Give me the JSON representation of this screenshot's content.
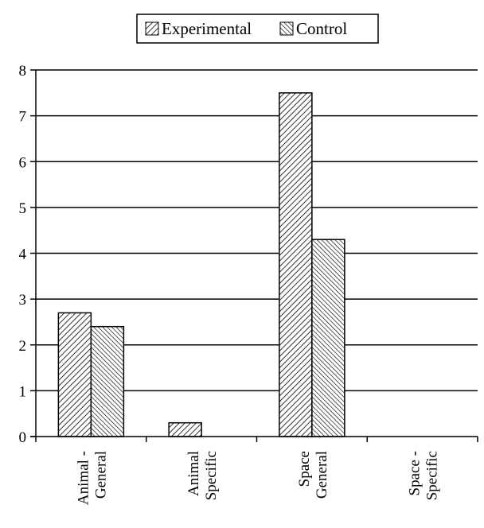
{
  "chart_data": {
    "type": "bar",
    "categories": [
      "Animal - General",
      "Animal Specific",
      "Space General",
      "Space - Specific"
    ],
    "category_lines": [
      [
        "Animal -",
        "General"
      ],
      [
        "Animal",
        "Specific"
      ],
      [
        "Space",
        "General"
      ],
      [
        "Space -",
        "Specific"
      ]
    ],
    "series": [
      {
        "name": "Experimental",
        "values": [
          2.7,
          0.3,
          7.5,
          0
        ]
      },
      {
        "name": "Control",
        "values": [
          2.4,
          0,
          4.3,
          0
        ]
      }
    ],
    "ylim": [
      0,
      8
    ],
    "yticks": [
      0,
      1,
      2,
      3,
      4,
      5,
      6,
      7,
      8
    ],
    "grid": true,
    "legend_position": "top-center",
    "title": "",
    "xlabel": "",
    "ylabel": ""
  }
}
